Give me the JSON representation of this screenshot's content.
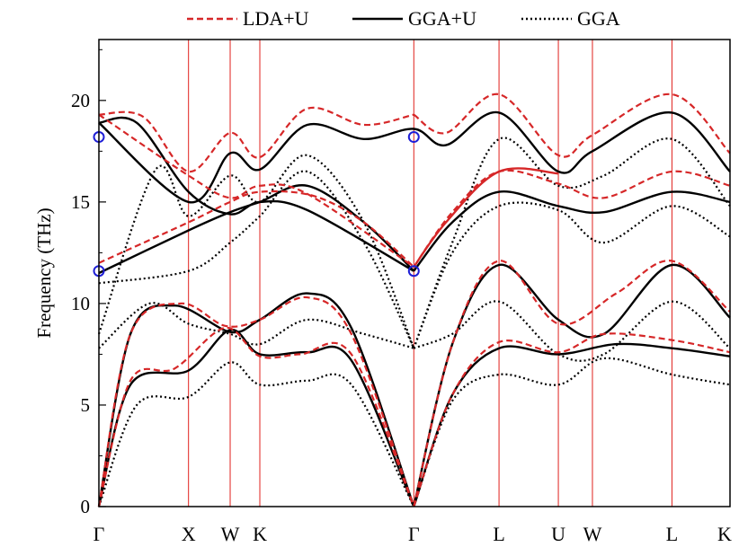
{
  "chart_data": {
    "type": "line",
    "ylabel": "Frequency (THz)",
    "ylim": [
      0,
      23
    ],
    "x_range": [
      0,
      10
    ],
    "y_ticks": [
      {
        "v": 0,
        "label": "0"
      },
      {
        "v": 5,
        "label": "5"
      },
      {
        "v": 10,
        "label": "10"
      },
      {
        "v": 15,
        "label": "15"
      },
      {
        "v": 20,
        "label": "20"
      }
    ],
    "high_symmetry_points": [
      {
        "x": 0,
        "label": "Γ"
      },
      {
        "x": 1.42,
        "label": "X"
      },
      {
        "x": 2.08,
        "label": "W"
      },
      {
        "x": 2.55,
        "label": "K"
      },
      {
        "x": 4.99,
        "label": "Γ"
      },
      {
        "x": 6.34,
        "label": "L"
      },
      {
        "x": 7.28,
        "label": "U"
      },
      {
        "x": 7.82,
        "label": "W"
      },
      {
        "x": 9.08,
        "label": "L"
      },
      {
        "x": 10.0,
        "label": "K"
      }
    ],
    "legend": [
      {
        "name": "LDA+U",
        "color": "#d62728",
        "style": "dashed"
      },
      {
        "name": "GGA+U",
        "color": "#000000",
        "style": "solid"
      },
      {
        "name": "GGA",
        "color": "#000000",
        "style": "dotted"
      }
    ],
    "series": [
      {
        "name": "LDA+U",
        "color": "#d62728",
        "style": "dashed",
        "branches": [
          [
            [
              0,
              0
            ],
            [
              0.5,
              6.2
            ],
            [
              1.2,
              6.8
            ],
            [
              2.0,
              8.8
            ],
            [
              2.55,
              7.4
            ],
            [
              3.2,
              7.5
            ],
            [
              4.0,
              7.5
            ],
            [
              4.99,
              0
            ]
          ],
          [
            [
              0,
              0
            ],
            [
              0.5,
              8.5
            ],
            [
              1.3,
              10.0
            ],
            [
              2.0,
              8.9
            ],
            [
              2.55,
              9.2
            ],
            [
              3.3,
              10.3
            ],
            [
              4.0,
              8.5
            ],
            [
              4.99,
              0
            ]
          ],
          [
            [
              0,
              12.0
            ],
            [
              1.42,
              14.0
            ],
            [
              2.08,
              15.0
            ],
            [
              2.55,
              15.5
            ],
            [
              3.4,
              15.3
            ],
            [
              4.2,
              14.0
            ],
            [
              4.99,
              11.8
            ]
          ],
          [
            [
              0,
              19.3
            ],
            [
              0.7,
              19.2
            ],
            [
              1.42,
              16.5
            ],
            [
              2.08,
              18.4
            ],
            [
              2.55,
              17.2
            ],
            [
              3.3,
              19.6
            ],
            [
              4.2,
              18.8
            ],
            [
              4.99,
              19.3
            ]
          ],
          [
            [
              0,
              19.3
            ],
            [
              1.42,
              16.3
            ],
            [
              2.08,
              15.2
            ],
            [
              2.55,
              15.8
            ],
            [
              3.3,
              15.4
            ],
            [
              4.99,
              11.8
            ]
          ],
          [
            [
              4.99,
              0
            ],
            [
              5.6,
              5.5
            ],
            [
              6.34,
              8.1
            ],
            [
              7.28,
              7.6
            ],
            [
              8.0,
              8.5
            ],
            [
              9.08,
              8.2
            ],
            [
              10.0,
              7.6
            ]
          ],
          [
            [
              4.99,
              0
            ],
            [
              5.6,
              8.0
            ],
            [
              6.34,
              12.1
            ],
            [
              7.28,
              9.0
            ],
            [
              8.2,
              10.5
            ],
            [
              9.08,
              12.1
            ],
            [
              10.0,
              9.6
            ]
          ],
          [
            [
              4.99,
              11.8
            ],
            [
              5.6,
              14.5
            ],
            [
              6.34,
              16.5
            ],
            [
              7.28,
              15.9
            ],
            [
              8.0,
              15.2
            ],
            [
              9.08,
              16.5
            ],
            [
              10.0,
              15.8
            ]
          ],
          [
            [
              4.99,
              19.3
            ],
            [
              5.5,
              18.4
            ],
            [
              6.34,
              20.3
            ],
            [
              7.28,
              17.3
            ],
            [
              7.82,
              18.3
            ],
            [
              9.08,
              20.3
            ],
            [
              10.0,
              17.4
            ]
          ]
        ]
      },
      {
        "name": "GGA+U",
        "color": "#000000",
        "style": "solid",
        "branches": [
          [
            [
              0,
              0
            ],
            [
              0.5,
              6.0
            ],
            [
              1.42,
              6.7
            ],
            [
              2.08,
              8.7
            ],
            [
              2.55,
              7.5
            ],
            [
              3.3,
              7.6
            ],
            [
              4.0,
              7.2
            ],
            [
              4.99,
              0
            ]
          ],
          [
            [
              0,
              0
            ],
            [
              0.5,
              8.5
            ],
            [
              1.2,
              9.9
            ],
            [
              2.08,
              8.6
            ],
            [
              2.55,
              9.2
            ],
            [
              3.3,
              10.5
            ],
            [
              4.0,
              8.8
            ],
            [
              4.99,
              0
            ]
          ],
          [
            [
              0,
              11.5
            ],
            [
              1.42,
              13.6
            ],
            [
              2.08,
              14.5
            ],
            [
              2.55,
              15.0
            ],
            [
              3.3,
              15.8
            ],
            [
              4.2,
              14.0
            ],
            [
              4.99,
              11.6
            ]
          ],
          [
            [
              0,
              18.9
            ],
            [
              0.6,
              18.9
            ],
            [
              1.42,
              15.5
            ],
            [
              2.08,
              14.4
            ],
            [
              2.55,
              15.0
            ],
            [
              3.3,
              14.6
            ],
            [
              4.99,
              11.6
            ]
          ],
          [
            [
              0,
              18.9
            ],
            [
              1.42,
              15.0
            ],
            [
              2.08,
              17.4
            ],
            [
              2.55,
              16.6
            ],
            [
              3.3,
              18.8
            ],
            [
              4.2,
              18.1
            ],
            [
              4.99,
              18.6
            ],
            [
              5.5,
              17.8
            ],
            [
              6.34,
              19.4
            ],
            [
              7.28,
              16.5
            ],
            [
              7.82,
              17.5
            ],
            [
              9.08,
              19.4
            ],
            [
              10.0,
              16.5
            ]
          ],
          [
            [
              4.99,
              0
            ],
            [
              5.6,
              5.5
            ],
            [
              6.34,
              7.8
            ],
            [
              7.28,
              7.5
            ],
            [
              8.2,
              8.0
            ],
            [
              9.08,
              7.8
            ],
            [
              10.0,
              7.4
            ]
          ],
          [
            [
              4.99,
              0
            ],
            [
              5.6,
              8.0
            ],
            [
              6.34,
              11.9
            ],
            [
              7.28,
              9.2
            ],
            [
              8.0,
              8.5
            ],
            [
              9.08,
              11.9
            ],
            [
              10.0,
              9.3
            ]
          ],
          [
            [
              4.99,
              11.6
            ],
            [
              5.6,
              14.0
            ],
            [
              6.34,
              15.5
            ],
            [
              7.28,
              14.8
            ],
            [
              8.0,
              14.5
            ],
            [
              9.08,
              15.5
            ],
            [
              10.0,
              15.0
            ]
          ]
        ]
      },
      {
        "name": "GGA",
        "color": "#000000",
        "style": "dotted",
        "branches": [
          [
            [
              0,
              0
            ],
            [
              0.6,
              5.0
            ],
            [
              1.42,
              5.4
            ],
            [
              2.08,
              7.1
            ],
            [
              2.55,
              6.0
            ],
            [
              3.3,
              6.2
            ],
            [
              4.0,
              6.0
            ],
            [
              4.99,
              0
            ]
          ],
          [
            [
              0,
              7.8
            ],
            [
              0.8,
              10.0
            ],
            [
              1.42,
              9.0
            ],
            [
              2.08,
              8.5
            ],
            [
              2.55,
              8.0
            ],
            [
              3.3,
              9.2
            ],
            [
              4.2,
              8.5
            ],
            [
              4.99,
              7.8
            ]
          ],
          [
            [
              0,
              8.5
            ],
            [
              0.9,
              16.6
            ],
            [
              1.42,
              14.3
            ],
            [
              2.08,
              16.3
            ],
            [
              2.55,
              15.0
            ],
            [
              3.3,
              17.3
            ],
            [
              4.2,
              14.0
            ],
            [
              4.99,
              7.8
            ]
          ],
          [
            [
              0,
              11.0
            ],
            [
              1.42,
              11.6
            ],
            [
              2.08,
              13.0
            ],
            [
              2.55,
              14.3
            ],
            [
              3.3,
              16.5
            ],
            [
              4.2,
              13.0
            ],
            [
              4.99,
              7.8
            ]
          ],
          [
            [
              4.99,
              0
            ],
            [
              5.6,
              5.2
            ],
            [
              6.34,
              6.5
            ],
            [
              7.28,
              6.0
            ],
            [
              8.0,
              7.3
            ],
            [
              9.08,
              6.5
            ],
            [
              10.0,
              6.0
            ]
          ],
          [
            [
              4.99,
              7.8
            ],
            [
              5.6,
              8.5
            ],
            [
              6.34,
              10.1
            ],
            [
              7.28,
              7.5
            ],
            [
              8.0,
              7.5
            ],
            [
              9.08,
              10.1
            ],
            [
              10.0,
              7.8
            ]
          ],
          [
            [
              4.99,
              7.8
            ],
            [
              5.6,
              12.5
            ],
            [
              6.34,
              14.8
            ],
            [
              7.28,
              14.6
            ],
            [
              8.0,
              13.0
            ],
            [
              9.08,
              14.8
            ],
            [
              10.0,
              13.3
            ]
          ],
          [
            [
              4.99,
              7.8
            ],
            [
              5.6,
              13.0
            ],
            [
              6.34,
              18.1
            ],
            [
              7.28,
              15.8
            ],
            [
              8.0,
              16.3
            ],
            [
              9.08,
              18.1
            ],
            [
              10.0,
              14.8
            ]
          ]
        ]
      }
    ],
    "highlight_red_branch": [
      [
        4.99,
        11.8
      ],
      [
        5.5,
        14.0
      ],
      [
        6.34,
        16.5
      ],
      [
        7.28,
        16.4
      ]
    ],
    "markers": [
      {
        "x": 0,
        "y": 18.2
      },
      {
        "x": 0,
        "y": 11.6
      },
      {
        "x": 4.99,
        "y": 18.2
      },
      {
        "x": 4.99,
        "y": 11.6
      }
    ],
    "marker_color": "#1f1fd6",
    "grid": false,
    "legend_placement": "top"
  }
}
